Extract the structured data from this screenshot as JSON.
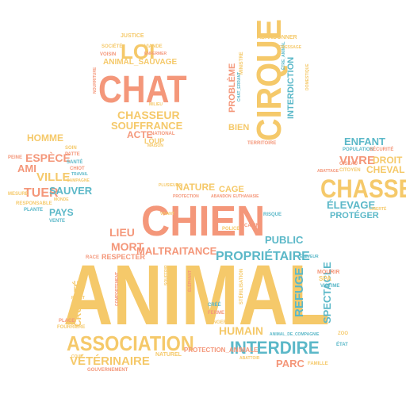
{
  "colors": {
    "salmon": "#F4977A",
    "yellow": "#F5C96A",
    "teal": "#5BB8C8",
    "background": "#FFFFFF"
  },
  "words": [
    {
      "text": "ANIMAL",
      "color": "yellow"
    },
    {
      "text": "CHIEN",
      "color": "salmon"
    },
    {
      "text": "CHAT",
      "color": "salmon"
    },
    {
      "text": "CIRQUE",
      "color": "yellow"
    },
    {
      "text": "CHASSE",
      "color": "yellow"
    },
    {
      "text": "LOI",
      "color": "yellow"
    },
    {
      "text": "ASSOCIATION",
      "color": "yellow"
    },
    {
      "text": "INTERDIRE",
      "color": "teal"
    },
    {
      "text": "PROPRIÉTAIRE",
      "color": "teal"
    },
    {
      "text": "MALTRAITANCE",
      "color": "salmon"
    },
    {
      "text": "VÉTÉRINAIRE",
      "color": "yellow"
    },
    {
      "text": "CHASSEUR",
      "color": "yellow"
    },
    {
      "text": "SOUFFRANCE",
      "color": "yellow"
    },
    {
      "text": "ACTE",
      "color": "salmon"
    },
    {
      "text": "ANIMAL_SAUVAGE",
      "color": "yellow"
    },
    {
      "text": "INTERDICTION",
      "color": "teal"
    },
    {
      "text": "PROBLÈME",
      "color": "salmon"
    },
    {
      "text": "BIEN",
      "color": "yellow"
    },
    {
      "text": "ENFANT",
      "color": "teal"
    },
    {
      "text": "VIVRE",
      "color": "salmon"
    },
    {
      "text": "DROIT",
      "color": "yellow"
    },
    {
      "text": "CHEVAL",
      "color": "yellow"
    },
    {
      "text": "ÉLEVAGE",
      "color": "teal"
    },
    {
      "text": "PROTÉGER",
      "color": "teal"
    },
    {
      "text": "HOMME",
      "color": "yellow"
    },
    {
      "text": "ESPÈCE",
      "color": "salmon"
    },
    {
      "text": "AMI",
      "color": "salmon"
    },
    {
      "text": "VILLE",
      "color": "yellow"
    },
    {
      "text": "TUER",
      "color": "salmon"
    },
    {
      "text": "SAUVER",
      "color": "teal"
    },
    {
      "text": "PAYS",
      "color": "teal"
    },
    {
      "text": "NATURE",
      "color": "yellow"
    },
    {
      "text": "CAGE",
      "color": "yellow"
    },
    {
      "text": "LIEU",
      "color": "salmon"
    },
    {
      "text": "MORT",
      "color": "salmon"
    },
    {
      "text": "PUBLIC",
      "color": "teal"
    },
    {
      "text": "HUMAIN",
      "color": "yellow"
    },
    {
      "text": "PARC",
      "color": "salmon"
    },
    {
      "text": "REFUGE",
      "color": "teal"
    },
    {
      "text": "SPECTACLE",
      "color": "teal"
    },
    {
      "text": "CRUAUTÉ",
      "color": "yellow"
    },
    {
      "text": "RESPECTER",
      "color": "salmon"
    },
    {
      "text": "PROTECTION_ANIMALE",
      "color": "salmon"
    },
    {
      "text": "LOUP",
      "color": "yellow"
    },
    {
      "text": "JUSTICE",
      "color": "yellow"
    },
    {
      "text": "ABANDONNER",
      "color": "yellow"
    },
    {
      "text": "SOCIÉTÉ",
      "color": "yellow"
    },
    {
      "text": "VOISIN",
      "color": "salmon"
    },
    {
      "text": "VIANDE",
      "color": "yellow"
    },
    {
      "text": "NATIONAL",
      "color": "salmon"
    },
    {
      "text": "MAISON",
      "color": "yellow"
    },
    {
      "text": "CHAT_ERRANT",
      "color": "teal"
    },
    {
      "text": "MINISTRE",
      "color": "yellow"
    },
    {
      "text": "TERRITOIRE",
      "color": "salmon"
    },
    {
      "text": "ÊTRE_ANIMAL",
      "color": "teal"
    },
    {
      "text": "POPULATION",
      "color": "teal"
    },
    {
      "text": "SÉCURITÉ",
      "color": "salmon"
    },
    {
      "text": "CITOYEN",
      "color": "yellow"
    },
    {
      "text": "OISEAU",
      "color": "salmon"
    },
    {
      "text": "ABATTAGE",
      "color": "salmon"
    },
    {
      "text": "LIBERTÉ",
      "color": "yellow"
    },
    {
      "text": "PATTE",
      "color": "salmon"
    },
    {
      "text": "SOIN",
      "color": "yellow"
    },
    {
      "text": "SANTÉ",
      "color": "teal"
    },
    {
      "text": "CHIOT",
      "color": "salmon"
    },
    {
      "text": "TRAVAIL",
      "color": "teal"
    },
    {
      "text": "CAMPAGNE",
      "color": "yellow"
    },
    {
      "text": "PEINE",
      "color": "salmon"
    },
    {
      "text": "MESURE",
      "color": "yellow"
    },
    {
      "text": "RESPONSABLE",
      "color": "yellow"
    },
    {
      "text": "PLANTE",
      "color": "teal"
    },
    {
      "text": "VENTE",
      "color": "teal"
    },
    {
      "text": "MONDE",
      "color": "yellow"
    },
    {
      "text": "RISQUE",
      "color": "teal"
    },
    {
      "text": "CANIN",
      "color": "salmon"
    },
    {
      "text": "POLICE",
      "color": "yellow"
    },
    {
      "text": "ABANDON",
      "color": "salmon"
    },
    {
      "text": "EUTHANASIE",
      "color": "salmon"
    },
    {
      "text": "RACE",
      "color": "salmon"
    },
    {
      "text": "ÉLEVEUR",
      "color": "teal"
    },
    {
      "text": "VICTIME",
      "color": "teal"
    },
    {
      "text": "MOURIR",
      "color": "salmon"
    },
    {
      "text": "SPA",
      "color": "yellow"
    },
    {
      "text": "ZOO",
      "color": "yellow"
    },
    {
      "text": "ÉTAT",
      "color": "teal"
    },
    {
      "text": "FAMILLE",
      "color": "yellow"
    },
    {
      "text": "ANIMAL_DE_COMPAGNIE",
      "color": "teal"
    },
    {
      "text": "ÉLÉPHANT",
      "color": "salmon"
    },
    {
      "text": "STÉRILISATION",
      "color": "yellow"
    },
    {
      "text": "COMPORTEMENT",
      "color": "salmon"
    },
    {
      "text": "FOURRIÈRE",
      "color": "yellow"
    },
    {
      "text": "PLACE",
      "color": "salmon"
    },
    {
      "text": "FORÊT",
      "color": "yellow"
    },
    {
      "text": "COUP",
      "color": "yellow"
    },
    {
      "text": "GOUVERNEMENT",
      "color": "salmon"
    },
    {
      "text": "NATUREL",
      "color": "yellow"
    },
    {
      "text": "CRÉÉ",
      "color": "teal"
    },
    {
      "text": "FERME",
      "color": "salmon"
    },
    {
      "text": "DANGER",
      "color": "yellow"
    },
    {
      "text": "ABATTOIR",
      "color": "yellow"
    },
    {
      "text": "SOUFFRIR",
      "color": "yellow"
    },
    {
      "text": "VIVANT",
      "color": "yellow"
    },
    {
      "text": "PLUSIEURS",
      "color": "yellow"
    },
    {
      "text": "PROTECTION",
      "color": "salmon"
    },
    {
      "text": "MILIEU",
      "color": "yellow"
    },
    {
      "text": "ENFERMER",
      "color": "salmon"
    },
    {
      "text": "DOMESTIQUE",
      "color": "yellow"
    },
    {
      "text": "NOURRITURE",
      "color": "salmon"
    },
    {
      "text": "DRESSAGE",
      "color": "yellow"
    }
  ]
}
